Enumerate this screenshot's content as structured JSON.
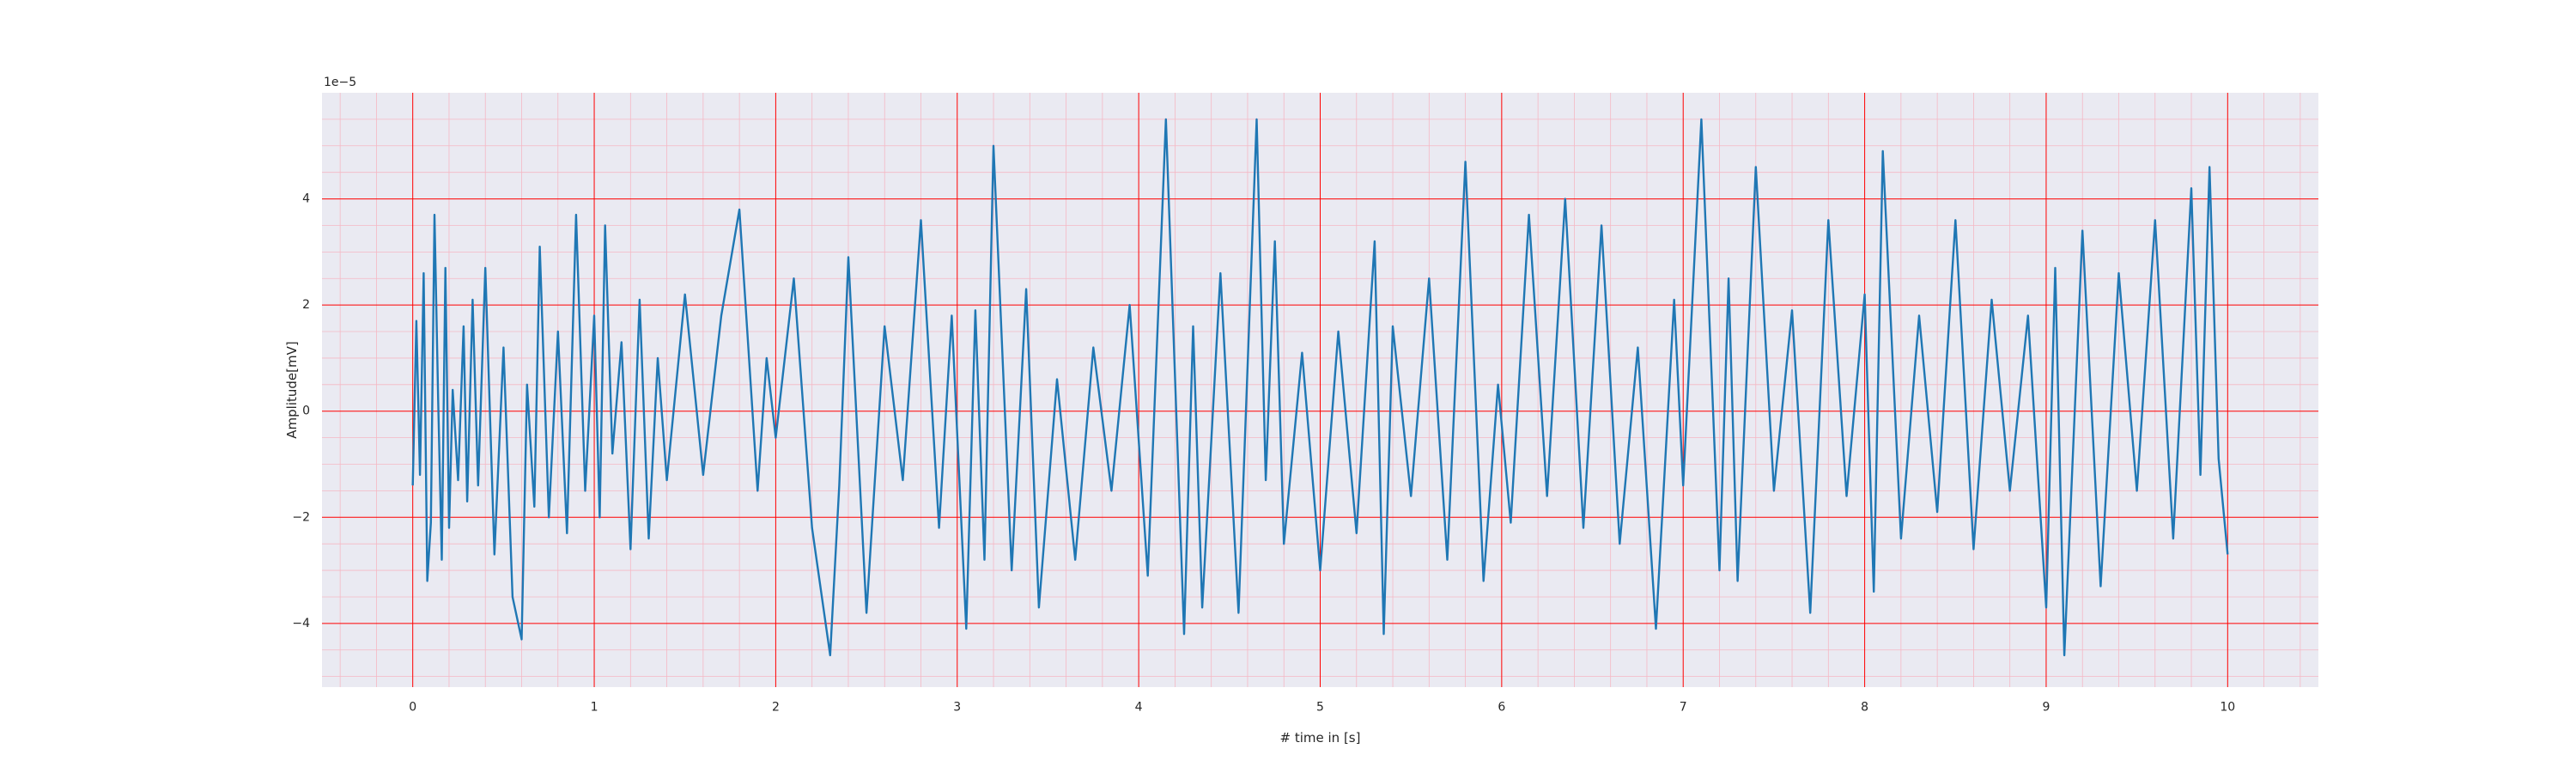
{
  "chart_data": {
    "type": "line",
    "title": "",
    "xlabel": "# time in [s]",
    "ylabel": "Amplitude[mV]",
    "y_offset_label": "1e−5",
    "xlim": [
      -0.5,
      10.5
    ],
    "ylim": [
      -5.2,
      6.0
    ],
    "x_ticks": [
      0,
      1,
      2,
      3,
      4,
      5,
      6,
      7,
      8,
      9,
      10
    ],
    "x_tick_labels": [
      "0",
      "1",
      "2",
      "3",
      "4",
      "5",
      "6",
      "7",
      "8",
      "9",
      "10"
    ],
    "y_ticks": [
      -4,
      -2,
      0,
      2,
      4
    ],
    "y_tick_labels": [
      "−4",
      "−2",
      "0",
      "2",
      "4"
    ],
    "y_scale_factor": 1e-05,
    "grid": true,
    "minor_grid": true,
    "legend": "none",
    "colors": {
      "background": "#eaeaf2",
      "major_grid": "#ff0000",
      "minor_grid": "#f5b8c4",
      "line": "#1f77b4"
    },
    "series": [
      {
        "x": [
          0.0,
          0.02,
          0.04,
          0.06,
          0.08,
          0.1,
          0.12,
          0.14,
          0.16,
          0.18,
          0.2,
          0.22,
          0.25,
          0.28,
          0.3,
          0.33,
          0.36,
          0.4,
          0.45,
          0.5,
          0.55,
          0.6,
          0.63,
          0.67,
          0.7,
          0.75,
          0.8,
          0.85,
          0.9,
          0.95,
          1.0,
          1.03,
          1.06,
          1.1,
          1.15,
          1.2,
          1.25,
          1.3,
          1.35,
          1.4,
          1.5,
          1.6,
          1.7,
          1.8,
          1.9,
          1.95,
          2.0,
          2.1,
          2.2,
          2.3,
          2.35,
          2.4,
          2.5,
          2.6,
          2.7,
          2.8,
          2.9,
          2.97,
          3.05,
          3.1,
          3.15,
          3.2,
          3.3,
          3.38,
          3.45,
          3.55,
          3.65,
          3.75,
          3.85,
          3.95,
          4.05,
          4.15,
          4.25,
          4.3,
          4.35,
          4.45,
          4.55,
          4.65,
          4.7,
          4.75,
          4.8,
          4.9,
          5.0,
          5.1,
          5.2,
          5.3,
          5.35,
          5.4,
          5.5,
          5.6,
          5.7,
          5.8,
          5.9,
          5.98,
          6.05,
          6.15,
          6.25,
          6.35,
          6.45,
          6.55,
          6.65,
          6.75,
          6.85,
          6.95,
          7.0,
          7.1,
          7.2,
          7.25,
          7.3,
          7.4,
          7.5,
          7.6,
          7.7,
          7.8,
          7.9,
          8.0,
          8.05,
          8.1,
          8.2,
          8.3,
          8.4,
          8.5,
          8.6,
          8.7,
          8.8,
          8.9,
          9.0,
          9.05,
          9.1,
          9.2,
          9.3,
          9.4,
          9.5,
          9.6,
          9.7,
          9.8,
          9.85,
          9.9,
          9.95,
          10.0
        ],
        "values": [
          -1.4,
          1.7,
          -1.2,
          2.6,
          -3.2,
          -2.1,
          3.7,
          0.2,
          -2.8,
          2.7,
          -2.2,
          0.4,
          -1.3,
          1.6,
          -1.7,
          2.1,
          -1.4,
          2.7,
          -2.7,
          1.2,
          -3.5,
          -4.3,
          0.5,
          -1.8,
          3.1,
          -2.0,
          1.5,
          -2.3,
          3.7,
          -1.5,
          1.8,
          -2.0,
          3.5,
          -0.8,
          1.3,
          -2.6,
          2.1,
          -2.4,
          1.0,
          -1.3,
          2.2,
          -1.2,
          1.8,
          3.8,
          -1.5,
          1.0,
          -0.5,
          2.5,
          -2.2,
          -4.6,
          -1.4,
          2.9,
          -3.8,
          1.6,
          -1.3,
          3.6,
          -2.2,
          1.8,
          -4.1,
          1.9,
          -2.8,
          5.0,
          -3.0,
          2.3,
          -3.7,
          0.6,
          -2.8,
          1.2,
          -1.5,
          2.0,
          -3.1,
          5.5,
          -4.2,
          1.6,
          -3.7,
          2.6,
          -3.8,
          5.5,
          -1.3,
          3.2,
          -2.5,
          1.1,
          -3.0,
          1.5,
          -2.3,
          3.2,
          -4.2,
          1.6,
          -1.6,
          2.5,
          -2.8,
          4.7,
          -3.2,
          0.5,
          -2.1,
          3.7,
          -1.6,
          4.0,
          -2.2,
          3.5,
          -2.5,
          1.2,
          -4.1,
          2.1,
          -1.4,
          5.5,
          -3.0,
          2.5,
          -3.2,
          4.6,
          -1.5,
          1.9,
          -3.8,
          3.6,
          -1.6,
          2.2,
          -3.4,
          4.9,
          -2.4,
          1.8,
          -1.9,
          3.6,
          -2.6,
          2.1,
          -1.5,
          1.8,
          -3.7,
          2.7,
          -4.6,
          3.4,
          -3.3,
          2.6,
          -1.5,
          3.6,
          -2.4,
          4.2,
          -1.2,
          4.6,
          -0.9,
          -2.7
        ]
      }
    ]
  }
}
